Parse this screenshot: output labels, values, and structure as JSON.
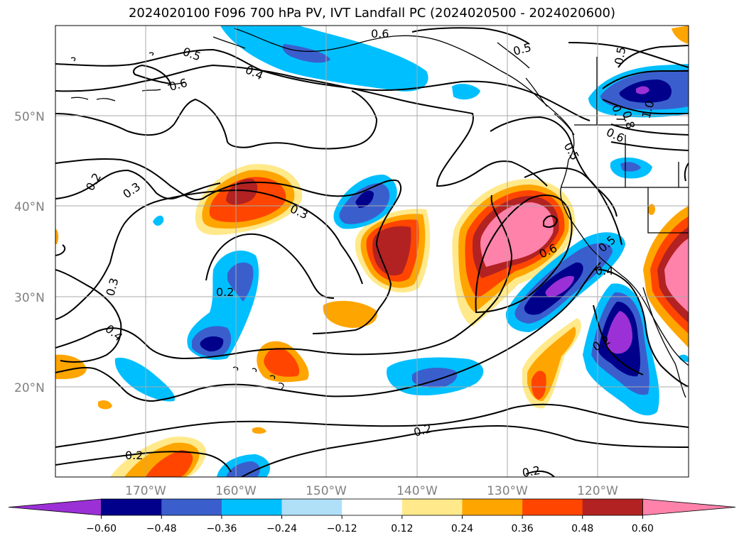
{
  "title": "2024020100 F096 700 hPa PV, IVT Landfall PC (2024020500 - 2024020600)",
  "lat_labels": [
    "50°N",
    "40°N",
    "30°N",
    "20°N"
  ],
  "lon_labels": [
    "170°W",
    "160°W",
    "150°W",
    "140°W",
    "130°W",
    "120°W"
  ],
  "contour_labels": [
    "0.6",
    "0.5",
    "0.5",
    "0.4",
    "0.6",
    "0.5",
    "0.5",
    "0.6",
    "0.2",
    "0.3",
    "0.3",
    "0.5",
    "0.6",
    "0.4",
    "0.3",
    "0.2",
    "0.4",
    "0.2",
    "0.2",
    "0.2",
    "0.2",
    "1.0",
    "0.7",
    "0.8"
  ],
  "colorbar": {
    "ticks": [
      "−0.60",
      "−0.48",
      "−0.36",
      "−0.24",
      "−0.12",
      "0.12",
      "0.24",
      "0.36",
      "0.48",
      "0.60"
    ],
    "colors": [
      "#9b30d6",
      "#00008b",
      "#3a5fcd",
      "#00bfff",
      "#b0e0f8",
      "#ffffff",
      "#ffe98a",
      "#ffa500",
      "#ff4500",
      "#b22222",
      "#ff82ab"
    ]
  }
}
